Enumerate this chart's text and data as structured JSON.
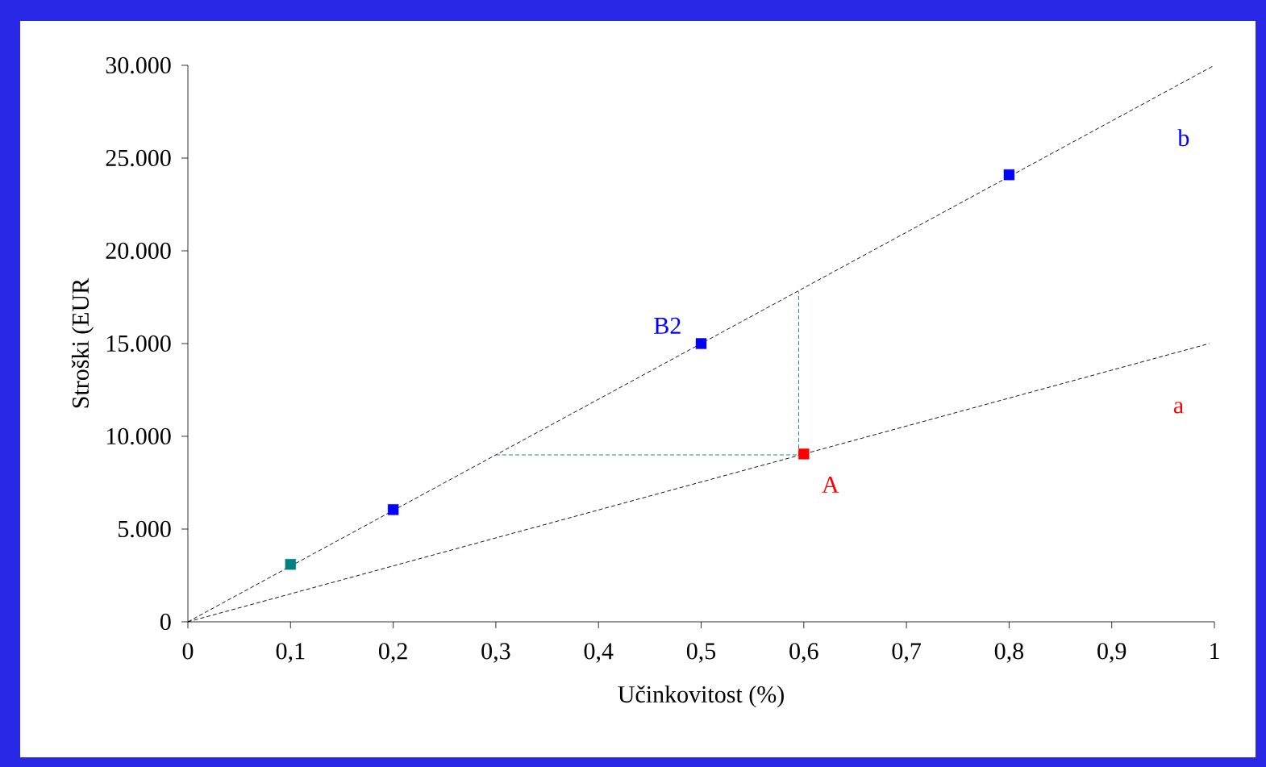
{
  "chart_data": {
    "type": "scatter",
    "xlabel": "Učinkovitost (%)",
    "ylabel": "Stroški (EUR",
    "marker": "square",
    "grid": false,
    "xlim": [
      0,
      1
    ],
    "ylim": [
      0,
      30000
    ],
    "xticks": [
      0,
      {
        "value": 0.1,
        "label": "0,1"
      },
      {
        "value": 0.2,
        "label": "0,2"
      },
      {
        "value": 0.3,
        "label": "0,3"
      },
      {
        "value": 0.4,
        "label": "0,4"
      },
      {
        "value": 0.5,
        "label": "0,5"
      },
      {
        "value": 0.6,
        "label": "0,6"
      },
      {
        "value": 0.7,
        "label": "0,7"
      },
      {
        "value": 0.8,
        "label": "0,8"
      },
      {
        "value": 0.9,
        "label": "0,9"
      },
      1
    ],
    "yticks": [
      0,
      {
        "value": 5000,
        "label": "5.000"
      },
      {
        "value": 10000,
        "label": "10.000"
      },
      {
        "value": 15000,
        "label": "15.000"
      },
      {
        "value": 20000,
        "label": "20.000"
      },
      {
        "value": 25000,
        "label": "25.000"
      },
      {
        "value": 30000,
        "label": "30.000"
      }
    ],
    "series": [
      {
        "type": "line",
        "name": "b",
        "marker": "none",
        "line_style": "dashed",
        "color": "#000000",
        "x": [
          0,
          1
        ],
        "values": [
          0,
          30000
        ]
      },
      {
        "type": "line",
        "name": "a",
        "marker": "none",
        "line_style": "dashed",
        "color": "#000000",
        "x": [
          0,
          0.995
        ],
        "values": [
          0,
          15000
        ]
      },
      {
        "type": "line",
        "marker": "none",
        "line_style": "dashed",
        "color": "#008080",
        "x": [
          0.3,
          0.595
        ],
        "values": [
          9000,
          9000
        ]
      },
      {
        "type": "line",
        "marker": "none",
        "line_style": "dashed",
        "color": "#008080",
        "x": [
          0.595,
          0.595
        ],
        "values": [
          9000,
          17800
        ]
      },
      {
        "color": "#008080",
        "x": [
          0.1
        ],
        "values": [
          3100
        ]
      },
      {
        "color": "#0000ff",
        "x": [
          0.2,
          0.5,
          0.8
        ],
        "values": [
          6050,
          15000,
          24100
        ]
      },
      {
        "color": "#ff0000",
        "x": [
          0.6
        ],
        "values": [
          9050
        ]
      }
    ],
    "annotations": [
      {
        "text": "B2",
        "x": 0.5,
        "y": 15000
      },
      {
        "text": "A",
        "x": 0.6,
        "y": 9050
      }
    ]
  }
}
